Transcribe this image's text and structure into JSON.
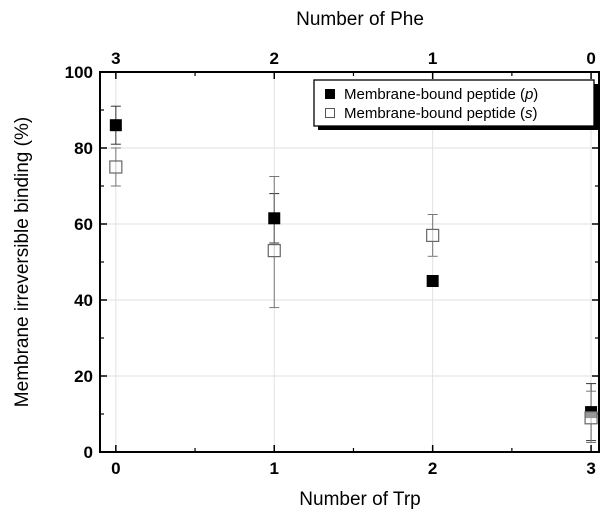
{
  "chart_data": {
    "type": "scatter",
    "x_bottom_label": "Number of Trp",
    "x_top_label": "Number of Phe",
    "ylabel": "Membrane irreversible binding (%)",
    "x_bottom_ticks": [
      "0",
      "1",
      "2",
      "3"
    ],
    "x_top_ticks": [
      "3",
      "2",
      "1",
      "0"
    ],
    "y_ticks": [
      "0",
      "20",
      "40",
      "60",
      "80",
      "100"
    ],
    "xlim": [
      -0.1,
      3.05
    ],
    "ylim": [
      0,
      100
    ],
    "grid": true,
    "legend_position": "top-right",
    "series": [
      {
        "name_prefix": "Membrane-bound peptide (",
        "name_italic": "p",
        "name_suffix": ")",
        "marker": "filled-square",
        "color": "#000000",
        "points": [
          {
            "x": 0,
            "y": 86,
            "err_low": 81,
            "err_high": 91
          },
          {
            "x": 1,
            "y": 61.5,
            "err_low": 55,
            "err_high": 68
          },
          {
            "x": 2,
            "y": 45
          },
          {
            "x": 3,
            "y": 10.5,
            "err_low": 3,
            "err_high": 18
          }
        ]
      },
      {
        "name_prefix": "Membrane-bound peptide (",
        "name_italic": "s",
        "name_suffix": ")",
        "marker": "open-square",
        "color": "#666666",
        "points": [
          {
            "x": 0,
            "y": 75,
            "err_low": 70,
            "err_high": 80
          },
          {
            "x": 1,
            "y": 53,
            "err_low": 38,
            "err_high": 72.5
          },
          {
            "x": 2,
            "y": 57,
            "err_low": 51.5,
            "err_high": 62.5
          },
          {
            "x": 3,
            "y": 9,
            "err_low": 2.5,
            "err_high": 16
          }
        ]
      }
    ]
  }
}
